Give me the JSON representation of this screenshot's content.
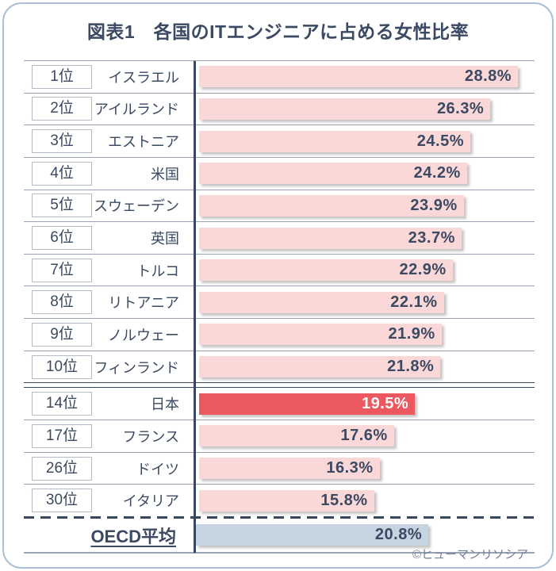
{
  "title": "図表1　各国のITエンジニアに占める女性比率",
  "credit": "©ヒューマンリソシア",
  "colors": {
    "card_border": "#ABC0D4",
    "text_navy": "#3B4962",
    "row_line": "#99A2B2",
    "axis": "#39465F",
    "rank_border": "#B4BBC6",
    "bar_pink": "#FAD8D8",
    "bar_red": "#EC5860",
    "bar_oecd": "#C6D3E1",
    "credit": "#71809A"
  },
  "chart_data": {
    "type": "bar",
    "orientation": "horizontal",
    "title": "図表1　各国のITエンジニアに占める女性比率",
    "value_suffix": "%",
    "axis_max": 30.3,
    "grid": false,
    "legend": false,
    "rows": [
      {
        "rank": "1位",
        "country": "イスラエル",
        "value": 28.8,
        "display": "28.8%",
        "highlight": false,
        "divider_after": null
      },
      {
        "rank": "2位",
        "country": "アイルランド",
        "value": 26.3,
        "display": "26.3%",
        "highlight": false,
        "divider_after": null
      },
      {
        "rank": "3位",
        "country": "エストニア",
        "value": 24.5,
        "display": "24.5%",
        "highlight": false,
        "divider_after": null
      },
      {
        "rank": "4位",
        "country": "米国",
        "value": 24.2,
        "display": "24.2%",
        "highlight": false,
        "divider_after": null
      },
      {
        "rank": "5位",
        "country": "スウェーデン",
        "value": 23.9,
        "display": "23.9%",
        "highlight": false,
        "divider_after": null
      },
      {
        "rank": "6位",
        "country": "英国",
        "value": 23.7,
        "display": "23.7%",
        "highlight": false,
        "divider_after": null
      },
      {
        "rank": "7位",
        "country": "トルコ",
        "value": 22.9,
        "display": "22.9%",
        "highlight": false,
        "divider_after": null
      },
      {
        "rank": "8位",
        "country": "リトアニア",
        "value": 22.1,
        "display": "22.1%",
        "highlight": false,
        "divider_after": null
      },
      {
        "rank": "9位",
        "country": "ノルウェー",
        "value": 21.9,
        "display": "21.9%",
        "highlight": false,
        "divider_after": null
      },
      {
        "rank": "10位",
        "country": "フィンランド",
        "value": 21.8,
        "display": "21.8%",
        "highlight": false,
        "divider_after": "double"
      },
      {
        "rank": "14位",
        "country": "日本",
        "value": 19.5,
        "display": "19.5%",
        "highlight": true,
        "divider_after": null
      },
      {
        "rank": "17位",
        "country": "フランス",
        "value": 17.6,
        "display": "17.6%",
        "highlight": false,
        "divider_after": null
      },
      {
        "rank": "26位",
        "country": "ドイツ",
        "value": 16.3,
        "display": "16.3%",
        "highlight": false,
        "divider_after": null
      },
      {
        "rank": "30位",
        "country": "イタリア",
        "value": 15.8,
        "display": "15.8%",
        "highlight": false,
        "divider_after": "dashed"
      }
    ],
    "summary": {
      "label": "OECD平均",
      "value": 20.8,
      "display": "20.8%"
    }
  }
}
